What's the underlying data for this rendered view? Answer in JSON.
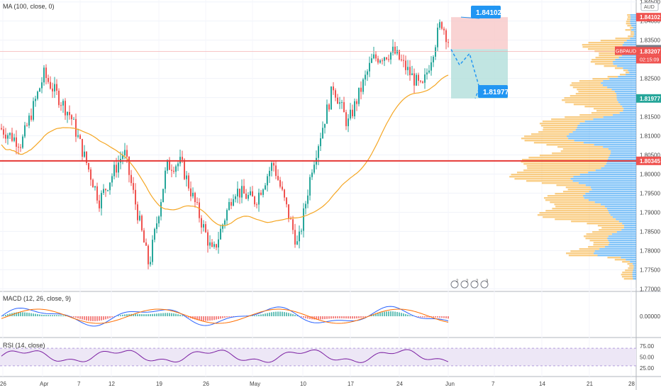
{
  "symbol": "GBPAUD",
  "countdown": "02:15:09",
  "currency": "AUD",
  "indicators": {
    "ma": "MA (100, close, 0)",
    "macd": "MACD (12, 26, close, 9)",
    "rsi": "RSI (14, close)"
  },
  "price_axis": {
    "min": 1.7695,
    "max": 1.8455,
    "ticks": [
      "1.84500",
      "1.84000",
      "1.83500",
      "1.83000",
      "1.82500",
      "1.82000",
      "1.81500",
      "1.81000",
      "1.80500",
      "1.80000",
      "1.79500",
      "1.79000",
      "1.78500",
      "1.78000",
      "1.77500",
      "1.77000"
    ]
  },
  "price_tags": {
    "take_profit": "1.84102",
    "entry": "1.83263",
    "last": "1.83207",
    "stop": "1.81977",
    "support": "1.80345"
  },
  "callouts": {
    "upper": "1.84102",
    "lower": "1.81977"
  },
  "macd_axis": {
    "zero": "0.00000"
  },
  "rsi_axis": {
    "ticks": [
      "75.00",
      "50.00",
      "25.00"
    ]
  },
  "time_axis": {
    "labels": [
      "26",
      "Apr",
      "7",
      "12",
      "19",
      "26",
      "May",
      "10",
      "17",
      "24",
      "Jun",
      "7",
      "14",
      "21",
      "28"
    ]
  },
  "colors": {
    "up": "#26a69a",
    "down": "#ef5350",
    "ma": "#f5a623",
    "support": "#e53935",
    "macd": "#2962ff",
    "signal": "#ff6d00",
    "rsi": "#7b1fa2",
    "rsi_band": "#ede7f6",
    "tag_red": "#ef5350",
    "tag_green": "#26a69a",
    "tag_gray": "#787b86",
    "tag_blue": "#2196f3",
    "vp_blue": "#2196f3",
    "vp_orange": "#f5a623"
  },
  "event_icons": [
    "event-marker",
    "event-marker",
    "event-marker",
    "event-marker"
  ],
  "event_counts": [
    "2",
    "2",
    "2",
    "3",
    "2"
  ]
}
